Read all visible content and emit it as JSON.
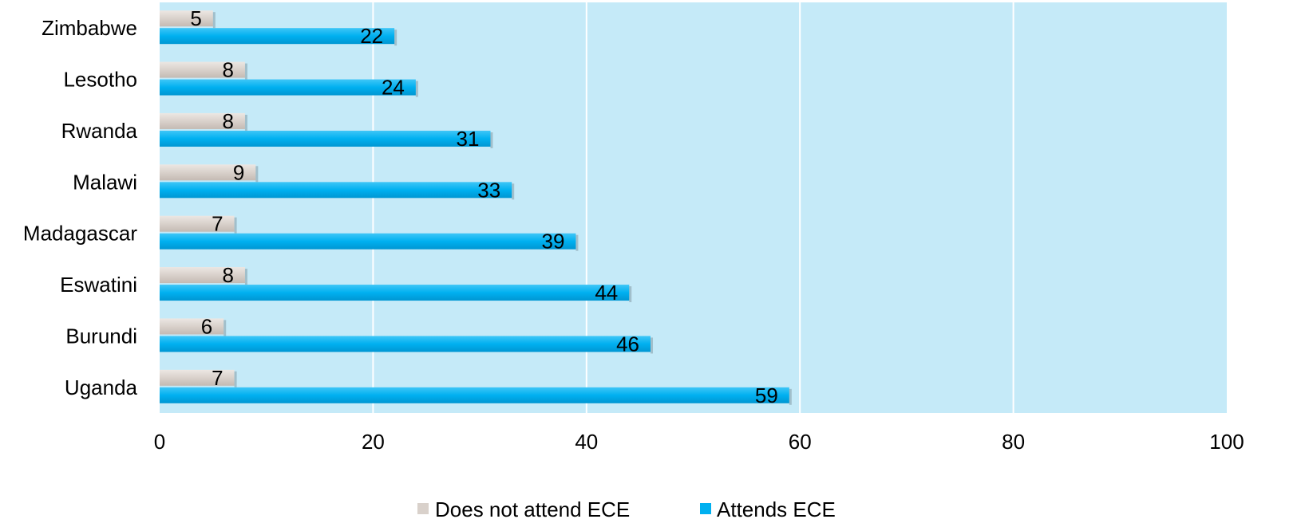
{
  "chart_data": {
    "type": "bar",
    "orientation": "horizontal",
    "categories": [
      "Zimbabwe",
      "Lesotho",
      "Rwanda",
      "Malawi",
      "Madagascar",
      "Eswatini",
      "Burundi",
      "Uganda"
    ],
    "series": [
      {
        "name": "Does not attend ECE",
        "values": [
          5,
          8,
          8,
          9,
          7,
          8,
          6,
          7
        ],
        "color": "#d9d1cb"
      },
      {
        "name": "Attends ECE",
        "values": [
          22,
          24,
          31,
          33,
          39,
          44,
          46,
          59
        ],
        "color": "#00b0f0"
      }
    ],
    "xlim": [
      0,
      100
    ],
    "xticks": [
      0,
      20,
      40,
      60,
      80,
      100
    ],
    "grid": true,
    "legend_position": "bottom",
    "plot_background": "#c5eaf8",
    "title": "",
    "xlabel": "",
    "ylabel": ""
  }
}
